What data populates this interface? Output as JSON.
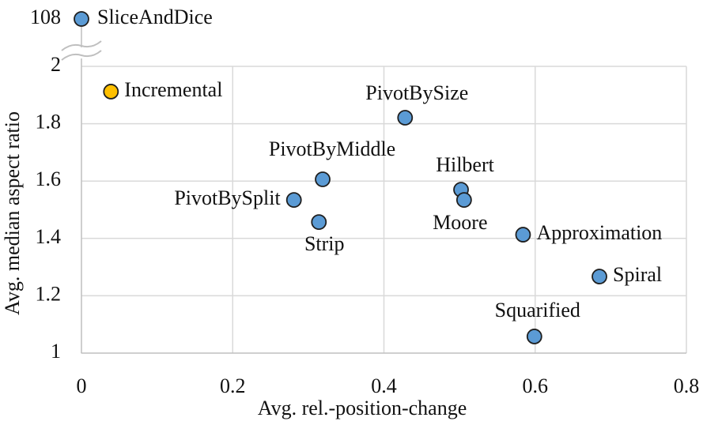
{
  "chart_data": {
    "type": "scatter",
    "xlabel": "Avg. rel.-position-change",
    "ylabel": "Avg. median aspect ratio",
    "labels": [
      "SliceAndDice",
      "Incremental",
      "PivotBySize",
      "PivotByMiddle",
      "PivotBySplit",
      "Strip",
      "Hilbert",
      "Moore",
      "Approximation",
      "Spiral",
      "Squarified"
    ],
    "x": [
      0,
      0.039,
      0.428,
      0.319,
      0.281,
      0.314,
      0.502,
      0.506,
      0.584,
      0.685,
      0.599
    ],
    "values": [
      108,
      1.912,
      1.821,
      1.606,
      1.534,
      1.457,
      1.57,
      1.534,
      1.413,
      1.267,
      1.058
    ],
    "colors": [
      "#5b9bd5",
      "#ffc000",
      "#5b9bd5",
      "#5b9bd5",
      "#5b9bd5",
      "#5b9bd5",
      "#5b9bd5",
      "#5b9bd5",
      "#5b9bd5",
      "#5b9bd5",
      "#5b9bd5"
    ],
    "xlim": [
      0,
      0.8
    ],
    "xticks": [
      0,
      0.2,
      0.4,
      0.6,
      0.8
    ],
    "ylim": [
      1,
      2
    ],
    "yticks": [
      1,
      1.2,
      1.4,
      1.6,
      1.8,
      2,
      108
    ],
    "axis_break": true,
    "grid": true
  }
}
